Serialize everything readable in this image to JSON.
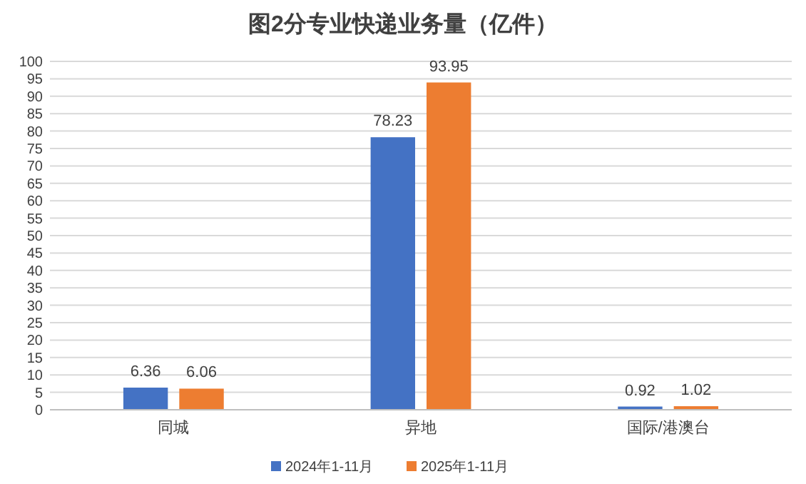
{
  "chart_data": {
    "type": "bar",
    "title": "图2分专业快递业务量（亿件）",
    "categories": [
      "同城",
      "异地",
      "国际/港澳台"
    ],
    "series": [
      {
        "name": "2024年1-11月",
        "color": "#4472c4",
        "values": [
          6.36,
          78.23,
          0.92
        ]
      },
      {
        "name": "2025年1-11月",
        "color": "#ed7d31",
        "values": [
          6.06,
          93.95,
          1.02
        ]
      }
    ],
    "ylim": [
      0,
      100
    ],
    "yticks": [
      0,
      5,
      10,
      15,
      20,
      25,
      30,
      35,
      40,
      45,
      50,
      55,
      60,
      65,
      70,
      75,
      80,
      85,
      90,
      95,
      100
    ],
    "grid": "y",
    "legend": "bottom",
    "data_labels": true
  }
}
